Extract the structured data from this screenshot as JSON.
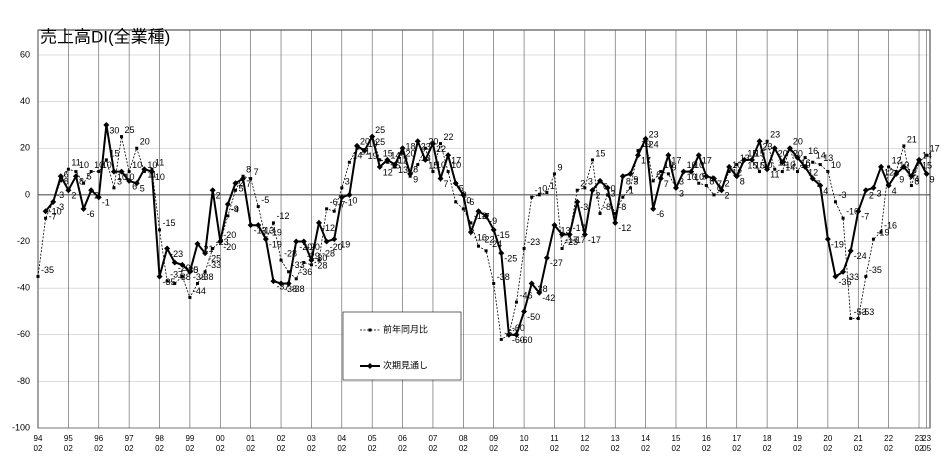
{
  "chart_data": {
    "type": "line",
    "title": "売上高DI(全業種)",
    "categories": [
      "94\n02",
      null,
      null,
      null,
      "95\n02",
      null,
      null,
      null,
      "96\n02",
      null,
      null,
      null,
      "97\n02",
      null,
      null,
      null,
      "98\n02",
      null,
      null,
      null,
      "99\n02",
      null,
      null,
      null,
      "00\n02",
      null,
      null,
      null,
      "01\n02",
      null,
      null,
      null,
      "02\n02",
      null,
      null,
      null,
      "03\n02",
      null,
      null,
      null,
      "04\n02",
      null,
      null,
      null,
      "05\n02",
      null,
      null,
      null,
      "06\n02",
      null,
      null,
      null,
      "07\n02",
      null,
      null,
      null,
      "08\n02",
      null,
      null,
      null,
      "09\n02",
      null,
      null,
      null,
      "10\n02",
      null,
      null,
      null,
      "11\n02",
      null,
      null,
      null,
      "12\n02",
      null,
      null,
      null,
      "13\n02",
      null,
      null,
      null,
      "14\n02",
      null,
      null,
      null,
      "15\n02",
      null,
      null,
      null,
      "16\n02",
      null,
      null,
      null,
      "17\n02",
      null,
      null,
      null,
      "18\n02",
      null,
      null,
      null,
      "19\n02",
      null,
      null,
      null,
      "20\n02",
      null,
      null,
      null,
      "21\n02",
      null,
      null,
      null,
      "22\n02",
      null,
      null,
      null,
      "23\n02",
      "23\n05"
    ],
    "series": [
      {
        "name": "前年同月比",
        "color": "#000000",
        "values": [
          -35,
          -10,
          -3,
          6,
          11,
          10,
          5,
          10,
          10,
          15,
          3,
          25,
          10,
          20,
          10,
          11,
          -15,
          -37,
          -38,
          -35,
          -44,
          -38,
          -33,
          -23,
          -20,
          -9,
          2,
          8,
          7,
          -5,
          -19,
          -12,
          -28,
          -33,
          -36,
          -29,
          -30,
          -28,
          -6,
          -7,
          3,
          14,
          20,
          19,
          25,
          15,
          14,
          12,
          18,
          8,
          13,
          20,
          10,
          22,
          10,
          -3,
          -6,
          -12,
          -22,
          -24,
          -38,
          -62,
          -60,
          -46,
          -23,
          -1,
          0,
          1,
          9,
          -23,
          -17,
          2,
          3,
          15,
          -8,
          0,
          -8,
          -1,
          3,
          19,
          23,
          6,
          10,
          9,
          3,
          10,
          10,
          5,
          4,
          0,
          2,
          10,
          13,
          15,
          15,
          10,
          23,
          11,
          10,
          20,
          10,
          16,
          14,
          13,
          10,
          -3,
          -10,
          -53,
          -53,
          -35,
          -19,
          -16,
          12,
          10,
          21,
          4,
          14,
          17
        ]
      },
      {
        "name": "次期見通し",
        "color": "#000000",
        "values": [
          null,
          -7,
          -3,
          8,
          2,
          8,
          -6,
          2,
          -1,
          30,
          10,
          10,
          6,
          5,
          11,
          10,
          -35,
          -23,
          -29,
          -30,
          -33,
          -21,
          -25,
          2,
          -20,
          -4,
          5,
          7,
          -13,
          -13,
          -19,
          -37,
          -38,
          -38,
          -20,
          -20,
          -28,
          -12,
          -20,
          -19,
          -1,
          0,
          21,
          19,
          25,
          12,
          15,
          13,
          20,
          9,
          23,
          15,
          22,
          7,
          17,
          5,
          0,
          -16,
          -7,
          -9,
          -15,
          -25,
          -60,
          -60,
          -50,
          -38,
          -42,
          -27,
          -13,
          -17,
          -17,
          -3,
          -17,
          2,
          6,
          3,
          -12,
          8,
          9,
          17,
          24,
          -6,
          7,
          17,
          3,
          10,
          10,
          17,
          8,
          7,
          2,
          12,
          8,
          15,
          15,
          23,
          11,
          20,
          14,
          20,
          16,
          12,
          7,
          4,
          -19,
          -35,
          -33,
          -24,
          -7,
          2,
          3,
          12,
          4,
          9,
          12,
          8,
          15,
          9
        ]
      }
    ],
    "ylim": [
      -100,
      60
    ],
    "yticks": [
      -100,
      -80,
      -60,
      -40,
      -20,
      0,
      20,
      40,
      60
    ],
    "grid": true
  }
}
